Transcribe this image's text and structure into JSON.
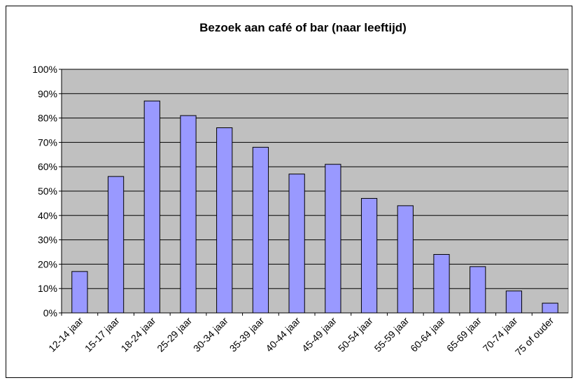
{
  "chart_data": {
    "type": "bar",
    "title": "Bezoek aan café of bar (naar leeftijd)",
    "categories": [
      "12-14 jaar",
      "15-17 jaar",
      "18-24 jaar",
      "25-29 jaar",
      "30-34 jaar",
      "35-39 jaar",
      "40-44 jaar",
      "45-49 jaar",
      "50-54 jaar",
      "55-59 jaar",
      "60-64 jaar",
      "65-69 jaar",
      "70-74 jaar",
      "75 of ouder"
    ],
    "values": [
      17,
      56,
      87,
      81,
      76,
      68,
      57,
      61,
      47,
      44,
      24,
      19,
      9,
      4
    ],
    "color": "#9999ff",
    "ylim": [
      0,
      100
    ],
    "yticks": [
      {
        "value": 0,
        "label": "0%"
      },
      {
        "value": 10,
        "label": "10%"
      },
      {
        "value": 20,
        "label": "20%"
      },
      {
        "value": 30,
        "label": "30%"
      },
      {
        "value": 40,
        "label": "40%"
      },
      {
        "value": 50,
        "label": "50%"
      },
      {
        "value": 60,
        "label": "60%"
      },
      {
        "value": 70,
        "label": "70%"
      },
      {
        "value": 80,
        "label": "80%"
      },
      {
        "value": 90,
        "label": "90%"
      },
      {
        "value": 100,
        "label": "100%"
      }
    ],
    "grid": true
  }
}
